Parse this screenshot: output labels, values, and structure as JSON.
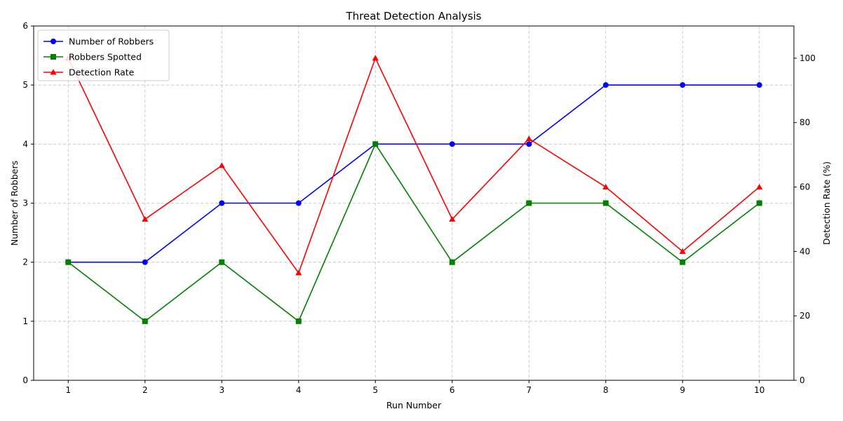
{
  "chart_data": {
    "type": "line",
    "title": "Threat Detection Analysis",
    "xlabel": "Run Number",
    "ylabel": "Number of Robbers",
    "y2label": "Detection Rate (%)",
    "x": [
      1,
      2,
      3,
      4,
      5,
      6,
      7,
      8,
      9,
      10
    ],
    "xlim": [
      0.55,
      10.45
    ],
    "ylim": [
      0,
      6
    ],
    "y2lim": [
      0,
      110
    ],
    "yticks": [
      0,
      1,
      2,
      3,
      4,
      5,
      6
    ],
    "y2ticks": [
      0,
      20,
      40,
      60,
      80,
      100
    ],
    "grid": true,
    "legend_position": "top-left",
    "series": [
      {
        "name": "Number of Robbers",
        "axis": "left",
        "color": "#0000ff",
        "marker": "circle",
        "values": [
          2,
          2,
          3,
          3,
          4,
          4,
          4,
          5,
          5,
          5
        ]
      },
      {
        "name": "Robbers Spotted",
        "axis": "left",
        "color": "#008000",
        "marker": "square",
        "values": [
          2,
          1,
          2,
          1,
          4,
          2,
          3,
          3,
          2,
          3
        ]
      },
      {
        "name": "Detection Rate",
        "axis": "right",
        "color": "#ff0000",
        "marker": "triangle",
        "values": [
          100,
          50,
          66.67,
          33.33,
          100,
          50,
          75,
          60,
          40,
          60
        ]
      }
    ]
  }
}
